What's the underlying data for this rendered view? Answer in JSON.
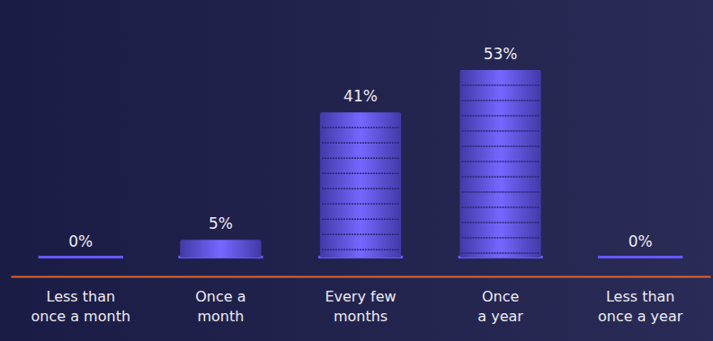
{
  "chart_data": {
    "type": "bar",
    "categories": [
      "Less than\nonce a month",
      "Once a\nmonth",
      "Every few\nmonths",
      "Once\na year",
      "Less than\nonce a year"
    ],
    "values": [
      0,
      5,
      41,
      53,
      0
    ],
    "value_labels": [
      "0%",
      "5%",
      "41%",
      "53%",
      "0%"
    ],
    "data_labels": true,
    "tick_labels": "x",
    "color": "#5b50e6"
  }
}
